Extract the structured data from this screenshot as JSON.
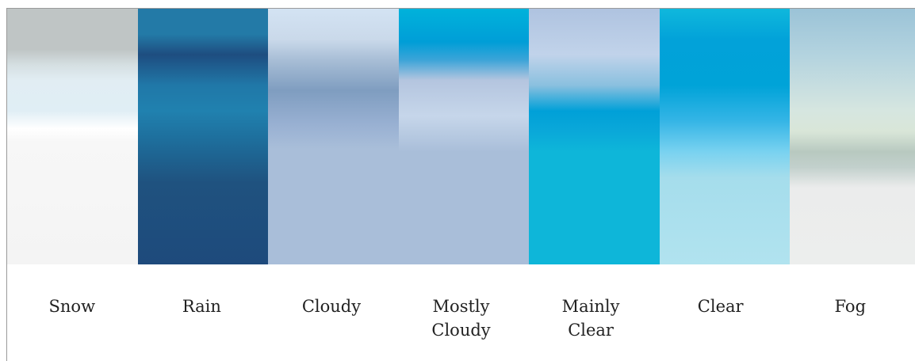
{
  "swatches": [
    {
      "label": "Snow",
      "key": "snow"
    },
    {
      "label": "Rain",
      "key": "rain"
    },
    {
      "label": "Cloudy",
      "key": "cloudy"
    },
    {
      "label": "Mostly\nCloudy",
      "key": "mostly-cloudy"
    },
    {
      "label": "Mainly\nClear",
      "key": "mainly-clear"
    },
    {
      "label": "Clear",
      "key": "clear"
    },
    {
      "label": "Fog",
      "key": "fog"
    }
  ],
  "colors": {
    "frame_border": "#9a9a9a",
    "label_text": "#222222"
  }
}
